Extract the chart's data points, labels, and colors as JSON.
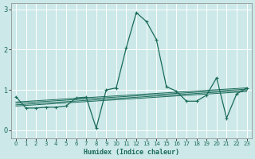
{
  "title": "",
  "xlabel": "Humidex (Indice chaleur)",
  "ylabel": "",
  "background_color": "#cce8e8",
  "grid_color": "#ffffff",
  "line_color": "#1a6b5a",
  "xlim": [
    -0.5,
    23.5
  ],
  "ylim": [
    -0.2,
    3.15
  ],
  "xticks": [
    0,
    1,
    2,
    3,
    4,
    5,
    6,
    7,
    8,
    9,
    10,
    11,
    12,
    13,
    14,
    15,
    16,
    17,
    18,
    19,
    20,
    21,
    22,
    23
  ],
  "yticks": [
    0,
    1,
    2,
    3
  ],
  "main_x": [
    0,
    1,
    2,
    3,
    4,
    5,
    6,
    7,
    8,
    9,
    10,
    11,
    12,
    13,
    14,
    15,
    16,
    17,
    18,
    19,
    20,
    21,
    22,
    23
  ],
  "main_y": [
    0.83,
    0.55,
    0.55,
    0.57,
    0.57,
    0.6,
    0.8,
    0.82,
    0.05,
    1.0,
    1.05,
    2.05,
    2.92,
    2.7,
    2.25,
    1.08,
    0.97,
    0.72,
    0.72,
    0.87,
    1.3,
    0.3,
    0.9,
    1.05
  ],
  "line1_x": [
    0,
    23
  ],
  "line1_y": [
    0.7,
    1.05
  ],
  "line2_x": [
    0,
    23
  ],
  "line2_y": [
    0.67,
    1.02
  ],
  "line3_x": [
    0,
    23
  ],
  "line3_y": [
    0.63,
    0.99
  ],
  "line4_x": [
    0,
    23
  ],
  "line4_y": [
    0.6,
    0.96
  ]
}
